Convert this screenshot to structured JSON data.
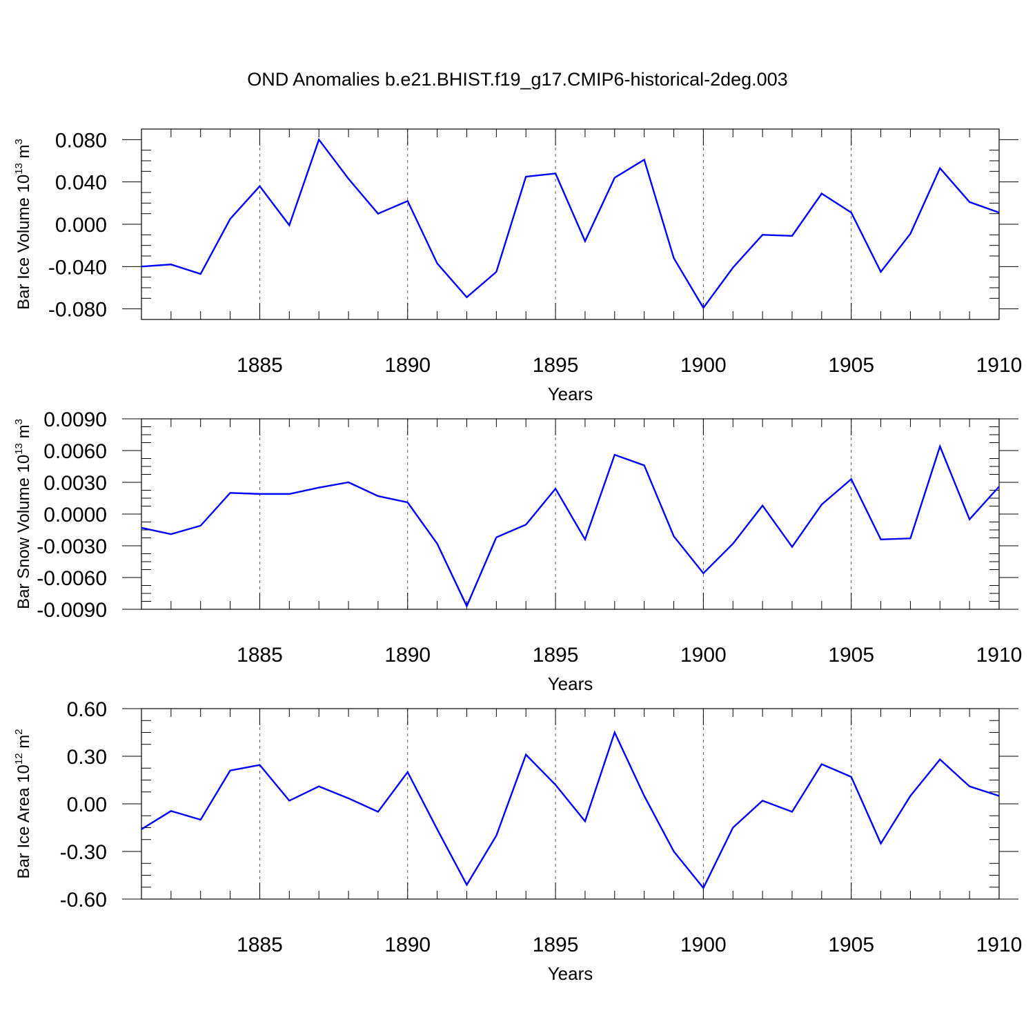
{
  "figure": {
    "title": "OND Anomalies b.e21.BHIST.f19_g17.CMIP6-historical-2deg.003"
  },
  "colors": {
    "line": "#0000ff",
    "axis": "#000000",
    "grid": "#555555",
    "background": "#ffffff"
  },
  "chart_data": [
    {
      "type": "line",
      "title": "",
      "xlabel": "Years",
      "ylabel": "Bar Ice Volume 10",
      "ylabel_exp": "13",
      "ylabel_unit": " m",
      "ylabel_unit_exp": "3",
      "xlim": [
        1881,
        1910
      ],
      "ylim": [
        -0.09,
        0.09
      ],
      "xticks": [
        1885,
        1890,
        1895,
        1900,
        1905,
        1910
      ],
      "xtick_labels": [
        "1885",
        "1890",
        "1895",
        "1900",
        "1905",
        "1910"
      ],
      "yticks": [
        -0.08,
        -0.04,
        0.0,
        0.04,
        0.08
      ],
      "ytick_labels": [
        "-0.080",
        "-0.040",
        "0.000",
        "0.040",
        "0.080"
      ],
      "grid": "vertical dashed at labeled years",
      "x": [
        1881,
        1882,
        1883,
        1884,
        1885,
        1886,
        1887,
        1888,
        1889,
        1890,
        1891,
        1892,
        1893,
        1894,
        1895,
        1896,
        1897,
        1898,
        1899,
        1900,
        1901,
        1902,
        1903,
        1904,
        1905,
        1906,
        1907,
        1908,
        1909,
        1910
      ],
      "series": [
        {
          "values": [
            -0.04,
            -0.038,
            -0.047,
            0.005,
            0.036,
            -0.001,
            0.08,
            0.043,
            0.01,
            0.022,
            -0.037,
            -0.069,
            -0.045,
            0.045,
            0.048,
            -0.016,
            0.044,
            0.061,
            -0.032,
            -0.079,
            -0.041,
            -0.01,
            -0.011,
            0.029,
            0.011,
            -0.045,
            -0.009,
            0.053,
            0.021,
            0.011
          ]
        }
      ]
    },
    {
      "type": "line",
      "title": "",
      "xlabel": "Years",
      "ylabel": "Bar Snow Volume 10",
      "ylabel_exp": "13",
      "ylabel_unit": " m",
      "ylabel_unit_exp": "3",
      "xlim": [
        1881,
        1910
      ],
      "ylim": [
        -0.009,
        0.009
      ],
      "xticks": [
        1885,
        1890,
        1895,
        1900,
        1905,
        1910
      ],
      "xtick_labels": [
        "1885",
        "1890",
        "1895",
        "1900",
        "1905",
        "1910"
      ],
      "yticks": [
        -0.009,
        -0.006,
        -0.003,
        0.0,
        0.003,
        0.006,
        0.009
      ],
      "ytick_labels": [
        "-0.0090",
        "-0.0060",
        "-0.0030",
        "0.0000",
        "0.0030",
        "0.0060",
        "0.0090"
      ],
      "grid": "vertical dashed at labeled years",
      "x": [
        1881,
        1882,
        1883,
        1884,
        1885,
        1886,
        1887,
        1888,
        1889,
        1890,
        1891,
        1892,
        1893,
        1894,
        1895,
        1896,
        1897,
        1898,
        1899,
        1900,
        1901,
        1902,
        1903,
        1904,
        1905,
        1906,
        1907,
        1908,
        1909,
        1910
      ],
      "series": [
        {
          "values": [
            -0.0013,
            -0.0019,
            -0.0011,
            0.002,
            0.0019,
            0.0019,
            0.0025,
            0.003,
            0.0017,
            0.0011,
            -0.0028,
            -0.0087,
            -0.0022,
            -0.001,
            0.0024,
            -0.0024,
            0.0056,
            0.0046,
            -0.0021,
            -0.0056,
            -0.0028,
            0.0008,
            -0.0031,
            0.0009,
            0.0033,
            -0.0024,
            -0.0023,
            0.0064,
            -0.0005,
            0.0026
          ]
        }
      ]
    },
    {
      "type": "line",
      "title": "",
      "xlabel": "Years",
      "ylabel": "Bar Ice Area 10",
      "ylabel_exp": "12",
      "ylabel_unit": " m",
      "ylabel_unit_exp": "2",
      "xlim": [
        1881,
        1910
      ],
      "ylim": [
        -0.6,
        0.6
      ],
      "xticks": [
        1885,
        1890,
        1895,
        1900,
        1905,
        1910
      ],
      "xtick_labels": [
        "1885",
        "1890",
        "1895",
        "1900",
        "1905",
        "1910"
      ],
      "yticks": [
        -0.6,
        -0.3,
        0.0,
        0.3,
        0.6
      ],
      "ytick_labels": [
        "-0.60",
        "-0.30",
        "0.00",
        "0.30",
        "0.60"
      ],
      "grid": "vertical dashed at labeled years",
      "x": [
        1881,
        1882,
        1883,
        1884,
        1885,
        1886,
        1887,
        1888,
        1889,
        1890,
        1891,
        1892,
        1893,
        1894,
        1895,
        1896,
        1897,
        1898,
        1899,
        1900,
        1901,
        1902,
        1903,
        1904,
        1905,
        1906,
        1907,
        1908,
        1909,
        1910
      ],
      "series": [
        {
          "values": [
            -0.16,
            -0.045,
            -0.1,
            0.21,
            0.245,
            0.02,
            0.11,
            0.035,
            -0.05,
            0.2,
            -0.16,
            -0.51,
            -0.2,
            0.31,
            0.12,
            -0.11,
            0.45,
            0.05,
            -0.3,
            -0.53,
            -0.15,
            0.02,
            -0.05,
            0.25,
            0.17,
            -0.25,
            0.05,
            0.28,
            0.11,
            0.05
          ]
        }
      ]
    }
  ]
}
